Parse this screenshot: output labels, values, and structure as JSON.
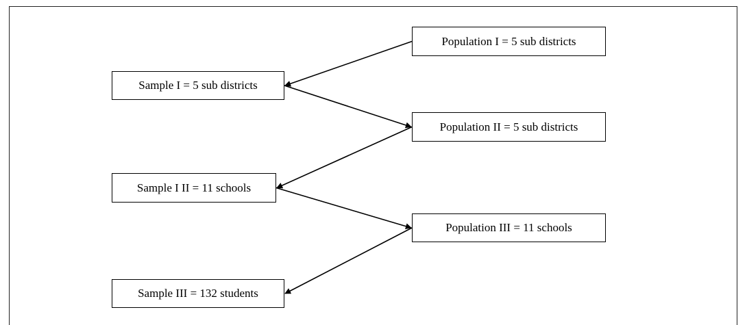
{
  "nodes": {
    "population_1": "Population I = 5 sub districts",
    "sample_1": "Sample I = 5 sub districts",
    "population_2": "Population II = 5 sub districts",
    "sample_2": "Sample I II = 11 schools",
    "population_3": "Population III = 11 schools",
    "sample_3": "Sample III = 132 students"
  },
  "edges": [
    {
      "from": "population_1",
      "to": "sample_1"
    },
    {
      "from": "sample_1",
      "to": "population_2"
    },
    {
      "from": "population_2",
      "to": "sample_2"
    },
    {
      "from": "sample_2",
      "to": "population_3"
    },
    {
      "from": "population_3",
      "to": "sample_3"
    }
  ],
  "colors": {
    "line": "#000000",
    "border": "#000000",
    "background": "#ffffff"
  }
}
